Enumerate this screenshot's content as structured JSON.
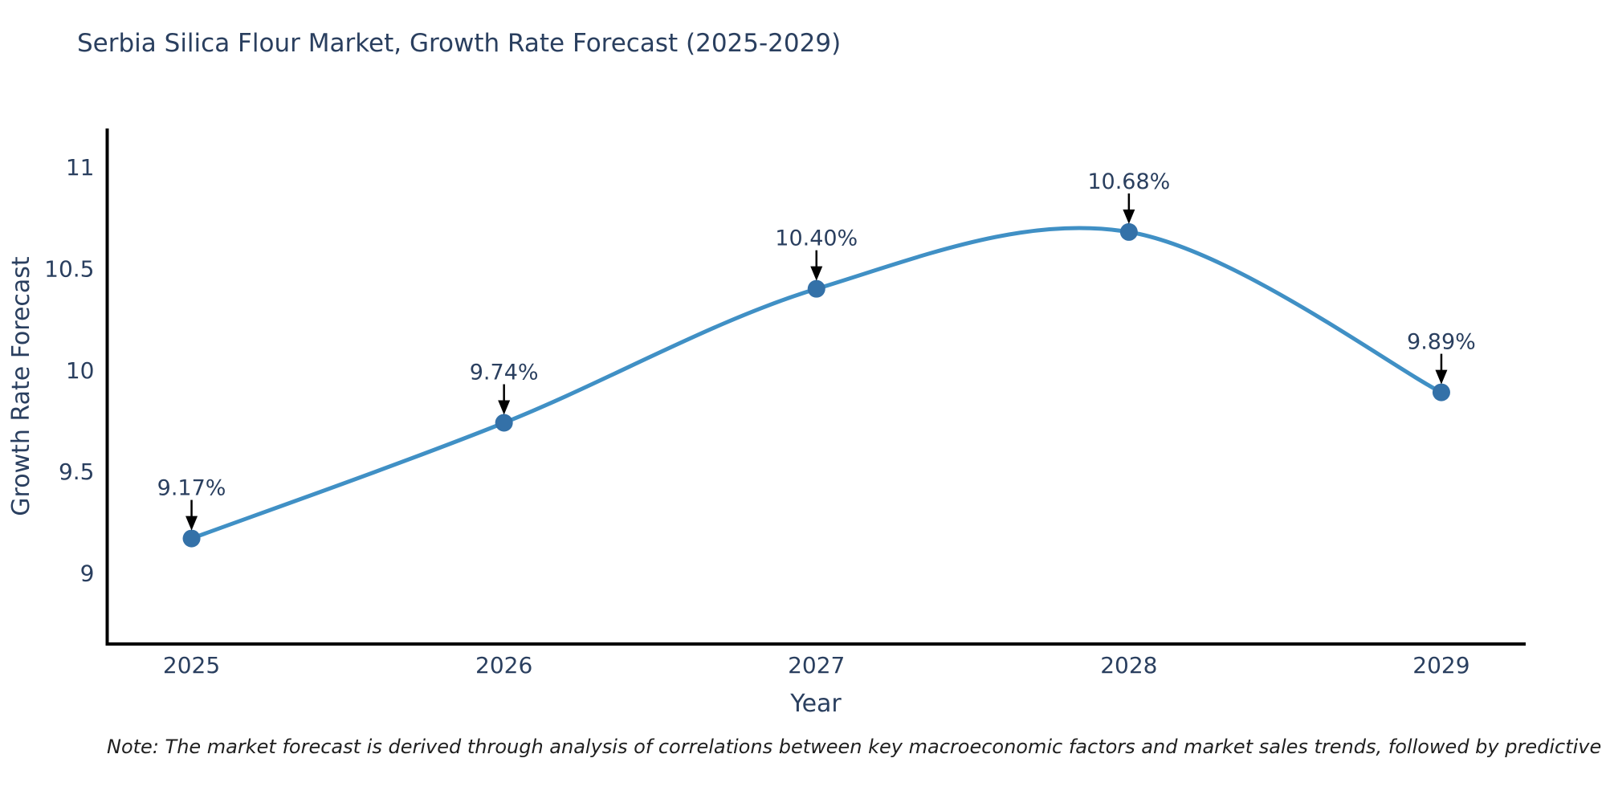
{
  "page": {
    "background": "#ffffff"
  },
  "chart_data": {
    "type": "line",
    "title": "Serbia Silica Flour Market, Growth Rate Forecast (2025-2029)",
    "xlabel": "Year",
    "ylabel": "Growth Rate Forecast",
    "x": [
      2025,
      2026,
      2027,
      2028,
      2029
    ],
    "series": [
      {
        "name": "Growth Rate Forecast",
        "values": [
          9.17,
          9.74,
          10.4,
          10.68,
          9.89
        ]
      }
    ],
    "point_labels": [
      "9.17%",
      "9.74%",
      "10.40%",
      "10.68%",
      "9.89%"
    ],
    "x_tick_labels": [
      "2025",
      "2026",
      "2027",
      "2028",
      "2029"
    ],
    "y_ticks": [
      9,
      9.5,
      10,
      10.5,
      11
    ],
    "y_tick_labels": [
      "9",
      "9.5",
      "10",
      "10.5",
      "11"
    ],
    "ylim": [
      8.65,
      11.19
    ],
    "xlim": [
      2024.73,
      2029.27
    ],
    "line_shape": "spline",
    "grid": false,
    "legend": "none",
    "colors": {
      "line": "#4090c5",
      "marker": "#3471a8",
      "axis": "#000000",
      "arrow": "#000000",
      "text": "#2a3f5f"
    }
  },
  "note": {
    "text": "Note: The market forecast is derived through analysis of correlations between key macroeconomic factors and market sales trends, followed by predictive modeling to project future sal"
  }
}
